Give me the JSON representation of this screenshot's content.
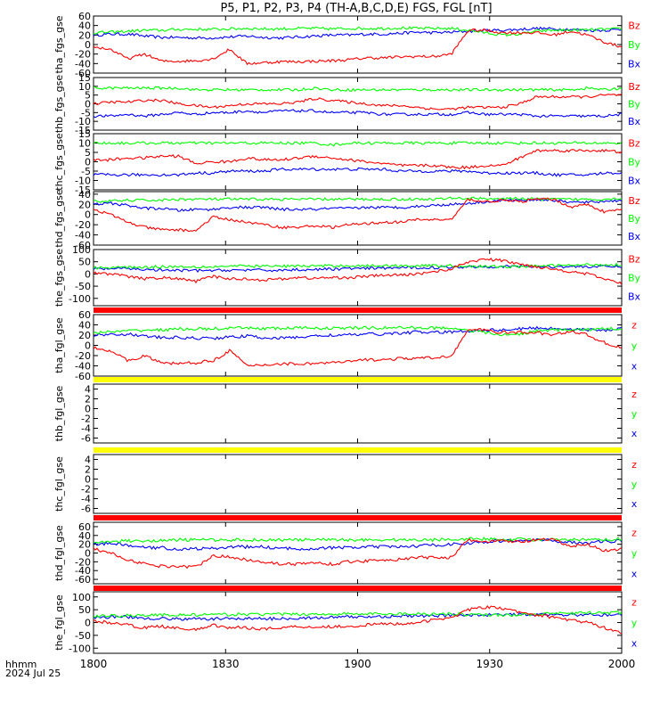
{
  "title": "P5, P1, P2, P3, P4 (TH-A,B,C,D,E) FGS, FGL [nT]",
  "x_axis": {
    "ticks": [
      "1800",
      "1830",
      "1900",
      "1930",
      "2000"
    ],
    "left_label": "hhmm",
    "date_label": "2024 Jul 25"
  },
  "colors": {
    "red": "#ff0000",
    "green": "#00ff00",
    "blue": "#0000ff",
    "yellow": "#ffff00"
  },
  "chart_data": [
    {
      "type": "line",
      "ylabel": "tha_fgs_gse",
      "yticks": [
        "60",
        "40",
        "20",
        "0",
        "-20",
        "-40",
        "-60"
      ],
      "ylim": [
        -60,
        60
      ],
      "legend": [
        "Bz",
        "By",
        "Bx"
      ],
      "series": [
        {
          "name": "Bx",
          "base": [
            20,
            22,
            22,
            18,
            15,
            15,
            14,
            14,
            16,
            18,
            15,
            14,
            16,
            18,
            20,
            20,
            22,
            22,
            24,
            26,
            25,
            26,
            28,
            30,
            30,
            32,
            34,
            33,
            32,
            30,
            30,
            32
          ]
        },
        {
          "name": "By",
          "base": [
            25,
            26,
            28,
            30,
            30,
            32,
            32,
            32,
            33,
            34,
            33,
            33,
            34,
            34,
            33,
            34,
            34,
            34,
            35,
            34,
            34,
            34,
            30,
            25,
            20,
            22,
            28,
            30,
            30,
            31,
            32,
            33
          ]
        },
        {
          "name": "Bz",
          "base": [
            -5,
            -10,
            -30,
            -20,
            -35,
            -35,
            -34,
            -30,
            -10,
            -40,
            -38,
            -36,
            -36,
            -35,
            -34,
            -32,
            -28,
            -28,
            -26,
            -25,
            -25,
            -20,
            30,
            30,
            25,
            25,
            25,
            20,
            28,
            20,
            5,
            -5
          ]
        }
      ]
    },
    {
      "type": "line",
      "ylabel": "thb_fgs_gse",
      "yticks": [
        "15",
        "10",
        "5",
        "0",
        "-5",
        "-10",
        "-15"
      ],
      "ylim": [
        -15,
        15
      ],
      "legend": [
        "Bz",
        "By",
        "Bx"
      ],
      "series": [
        {
          "name": "Bx",
          "base": [
            -7,
            -7,
            -6,
            -7,
            -6,
            -5,
            -6,
            -5,
            -5,
            -4,
            -5,
            -4,
            -4,
            -4,
            -5,
            -5,
            -5,
            -6,
            -6,
            -6,
            -6,
            -6,
            -5,
            -6,
            -6,
            -6,
            -7,
            -7,
            -7,
            -7,
            -7,
            -6
          ]
        },
        {
          "name": "By",
          "base": [
            9,
            9,
            9,
            9,
            9,
            9,
            8,
            8,
            8,
            8,
            8,
            8,
            8,
            9,
            8,
            8,
            8,
            8,
            8,
            8,
            8,
            8,
            8,
            8,
            8,
            8,
            8,
            8,
            8,
            9,
            8,
            9
          ]
        },
        {
          "name": "Bz",
          "base": [
            0,
            1,
            1,
            2,
            2,
            0,
            -1,
            -2,
            -1,
            0,
            0,
            0,
            1,
            3,
            2,
            1,
            0,
            -1,
            -1,
            -2,
            -3,
            -3,
            -2,
            -2,
            -2,
            0,
            4,
            4,
            4,
            4,
            5,
            5
          ]
        }
      ]
    },
    {
      "type": "line",
      "ylabel": "thc_fgs_gse",
      "yticks": [
        "15",
        "10",
        "5",
        "0",
        "-5",
        "-10",
        "-15"
      ],
      "ylim": [
        -15,
        15
      ],
      "legend": [
        "Bz",
        "By",
        "Bx"
      ],
      "series": [
        {
          "name": "Bx",
          "base": [
            -7,
            -7,
            -7,
            -7,
            -7,
            -7,
            -6,
            -6,
            -5,
            -5,
            -5,
            -4,
            -4,
            -4,
            -4,
            -4,
            -4,
            -4,
            -5,
            -5,
            -5,
            -5,
            -5,
            -6,
            -6,
            -6,
            -6,
            -7,
            -7,
            -7,
            -6,
            -6
          ]
        },
        {
          "name": "By",
          "base": [
            10,
            10,
            10,
            10,
            10,
            10,
            10,
            10,
            10,
            10,
            10,
            10,
            10,
            10,
            9,
            10,
            10,
            10,
            10,
            10,
            10,
            10,
            10,
            10,
            10,
            10,
            10,
            10,
            10,
            10,
            10,
            10
          ]
        },
        {
          "name": "Bz",
          "base": [
            1,
            1,
            2,
            2,
            3,
            3,
            -1,
            0,
            0,
            2,
            1,
            1,
            2,
            3,
            2,
            1,
            0,
            -1,
            -2,
            -2,
            -2,
            -3,
            -3,
            -2,
            -2,
            2,
            6,
            6,
            6,
            6,
            6,
            5
          ]
        }
      ]
    },
    {
      "type": "line",
      "ylabel": "thd_fgs_gse",
      "yticks": [
        "40",
        "20",
        "0",
        "-20",
        "-40",
        "-60"
      ],
      "ylim": [
        -60,
        45
      ],
      "legend": [
        "Bz",
        "By",
        "Bx"
      ],
      "series": [
        {
          "name": "Bx",
          "base": [
            20,
            22,
            18,
            12,
            12,
            8,
            10,
            10,
            14,
            14,
            14,
            10,
            10,
            10,
            12,
            12,
            14,
            14,
            14,
            16,
            18,
            20,
            22,
            25,
            28,
            28,
            30,
            28,
            24,
            24,
            26,
            28
          ]
        },
        {
          "name": "By",
          "base": [
            26,
            26,
            28,
            28,
            28,
            30,
            30,
            30,
            30,
            30,
            30,
            30,
            30,
            30,
            30,
            30,
            30,
            30,
            30,
            30,
            30,
            32,
            32,
            32,
            30,
            32,
            30,
            30,
            30,
            30,
            30,
            32
          ]
        },
        {
          "name": "Bz",
          "base": [
            10,
            0,
            -15,
            -25,
            -30,
            -30,
            -32,
            -5,
            -10,
            -15,
            -20,
            -25,
            -25,
            -22,
            -25,
            -20,
            -18,
            -15,
            -15,
            -10,
            -10,
            -10,
            30,
            25,
            28,
            25,
            30,
            30,
            15,
            20,
            5,
            10
          ]
        }
      ]
    },
    {
      "type": "line",
      "ylabel": "the_fgs_gse",
      "yticks": [
        "100",
        "50",
        "0",
        "-50",
        "-100"
      ],
      "ylim": [
        -130,
        100
      ],
      "legend": [
        "Bz",
        "By",
        "Bx"
      ],
      "series": [
        {
          "name": "Bx",
          "base": [
            20,
            22,
            22,
            18,
            15,
            14,
            14,
            14,
            16,
            16,
            15,
            15,
            18,
            18,
            20,
            22,
            22,
            24,
            25,
            26,
            26,
            28,
            30,
            30,
            30,
            32,
            30,
            30,
            30,
            30,
            30,
            30
          ]
        },
        {
          "name": "By",
          "base": [
            25,
            26,
            28,
            28,
            30,
            30,
            30,
            30,
            32,
            32,
            32,
            32,
            32,
            33,
            33,
            34,
            33,
            34,
            34,
            34,
            34,
            34,
            32,
            30,
            30,
            30,
            32,
            35,
            35,
            38,
            38,
            38
          ]
        },
        {
          "name": "Bz",
          "base": [
            5,
            0,
            -10,
            -20,
            -15,
            -20,
            -30,
            -10,
            -20,
            -20,
            -25,
            -20,
            -15,
            -18,
            -15,
            -15,
            -10,
            -5,
            -5,
            0,
            10,
            20,
            50,
            60,
            55,
            40,
            30,
            20,
            10,
            0,
            -20,
            -40
          ]
        }
      ]
    },
    {
      "type": "line",
      "ylabel": "tha_fgl_gse",
      "yticks": [
        "60",
        "40",
        "20",
        "0",
        "-20",
        "-40",
        "-60"
      ],
      "ylim": [
        -60,
        60
      ],
      "legend": [
        "z",
        "y",
        "x"
      ],
      "series": [
        {
          "name": "x",
          "base": [
            20,
            22,
            22,
            18,
            15,
            15,
            14,
            14,
            16,
            18,
            15,
            14,
            16,
            18,
            20,
            20,
            22,
            22,
            24,
            26,
            25,
            26,
            28,
            30,
            30,
            32,
            34,
            33,
            32,
            30,
            30,
            32
          ]
        },
        {
          "name": "y",
          "base": [
            25,
            26,
            28,
            30,
            30,
            32,
            32,
            32,
            33,
            34,
            33,
            33,
            34,
            34,
            33,
            34,
            34,
            34,
            35,
            34,
            34,
            34,
            30,
            25,
            20,
            22,
            28,
            30,
            30,
            31,
            32,
            33
          ]
        },
        {
          "name": "z",
          "base": [
            -5,
            -10,
            -30,
            -20,
            -35,
            -35,
            -34,
            -30,
            -10,
            -40,
            -38,
            -36,
            -36,
            -35,
            -34,
            -32,
            -28,
            -28,
            -26,
            -25,
            -25,
            -20,
            30,
            30,
            25,
            25,
            25,
            20,
            28,
            20,
            5,
            -5
          ]
        }
      ]
    },
    {
      "type": "line",
      "ylabel": "thb_fgl_gse",
      "yticks": [
        "4",
        "2",
        "0",
        "-2",
        "-4",
        "-6"
      ],
      "ylim": [
        -7,
        5
      ],
      "legend": [
        "z",
        "y",
        "x"
      ],
      "series": []
    },
    {
      "type": "line",
      "ylabel": "thc_fgl_gse",
      "yticks": [
        "4",
        "2",
        "0",
        "-2",
        "-4",
        "-6"
      ],
      "ylim": [
        -7,
        5
      ],
      "legend": [
        "z",
        "y",
        "x"
      ],
      "series": []
    },
    {
      "type": "line",
      "ylabel": "thd_fgl_gse",
      "yticks": [
        "60",
        "40",
        "20",
        "0",
        "-20",
        "-40",
        "-60"
      ],
      "ylim": [
        -70,
        70
      ],
      "legend": [
        "z",
        "y",
        "x"
      ],
      "series": [
        {
          "name": "x",
          "base": [
            20,
            22,
            18,
            12,
            12,
            8,
            10,
            10,
            14,
            14,
            14,
            10,
            10,
            10,
            12,
            12,
            14,
            14,
            14,
            16,
            18,
            20,
            22,
            25,
            28,
            28,
            30,
            28,
            24,
            24,
            26,
            28
          ]
        },
        {
          "name": "y",
          "base": [
            26,
            26,
            28,
            28,
            28,
            30,
            30,
            30,
            30,
            30,
            30,
            30,
            30,
            30,
            30,
            30,
            30,
            30,
            30,
            30,
            30,
            32,
            32,
            32,
            30,
            32,
            30,
            30,
            30,
            30,
            30,
            32
          ]
        },
        {
          "name": "z",
          "base": [
            10,
            0,
            -15,
            -25,
            -30,
            -30,
            -32,
            -5,
            -10,
            -15,
            -20,
            -25,
            -25,
            -22,
            -25,
            -20,
            -18,
            -15,
            -15,
            -10,
            -10,
            -10,
            30,
            25,
            28,
            25,
            30,
            30,
            15,
            20,
            5,
            10
          ]
        }
      ]
    },
    {
      "type": "line",
      "ylabel": "the_fgl_gse",
      "yticks": [
        "100",
        "50",
        "0",
        "-50",
        "-100"
      ],
      "ylim": [
        -120,
        120
      ],
      "legend": [
        "z",
        "y",
        "x"
      ],
      "series": [
        {
          "name": "x",
          "base": [
            20,
            22,
            22,
            18,
            15,
            14,
            14,
            14,
            16,
            16,
            15,
            15,
            18,
            18,
            20,
            22,
            22,
            24,
            25,
            26,
            26,
            28,
            30,
            30,
            30,
            32,
            30,
            30,
            30,
            30,
            30,
            30
          ]
        },
        {
          "name": "y",
          "base": [
            25,
            26,
            28,
            28,
            30,
            30,
            30,
            30,
            32,
            32,
            32,
            32,
            32,
            33,
            33,
            34,
            33,
            34,
            34,
            34,
            34,
            34,
            32,
            30,
            30,
            30,
            32,
            35,
            35,
            38,
            38,
            38
          ]
        },
        {
          "name": "z",
          "base": [
            5,
            0,
            -10,
            -20,
            -15,
            -20,
            -30,
            -10,
            -20,
            -20,
            -25,
            -20,
            -15,
            -18,
            -15,
            -15,
            -10,
            -5,
            -5,
            0,
            10,
            20,
            50,
            60,
            55,
            40,
            30,
            20,
            10,
            0,
            -20,
            -40
          ]
        }
      ]
    }
  ],
  "bars": [
    {
      "color": "red"
    },
    {
      "color": "yellow"
    },
    {
      "color": "yellow"
    },
    {
      "color": "red"
    },
    {
      "color": "red"
    }
  ]
}
